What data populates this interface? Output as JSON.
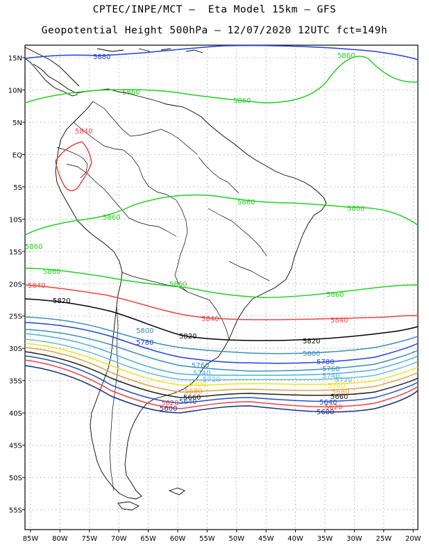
{
  "header": {
    "title_line1": "CPTEC/INPE/MCT –  Eta Model 15km – GFS",
    "title_line2": "Geopotential Height 500hPa – 12/07/2020 12UTC fct=149h"
  },
  "map": {
    "lat_labels": [
      "15N",
      "10N",
      "5N",
      "EQ",
      "5S",
      "10S",
      "15S",
      "20S",
      "25S",
      "30S",
      "35S",
      "40S",
      "45S",
      "50S",
      "55S"
    ],
    "lon_labels": [
      "85W",
      "80W",
      "75W",
      "70W",
      "65W",
      "60W",
      "55W",
      "50W",
      "45W",
      "40W",
      "35W",
      "30W",
      "25W",
      "20W"
    ],
    "grid_color": "#9a9a9a",
    "coast_color": "#000000"
  },
  "contours": {
    "c5880": {
      "label": "5880",
      "color": "#2040e0"
    },
    "c5860": {
      "label": "5860",
      "color": "#20d020"
    },
    "c5840": {
      "label": "5840",
      "color": "#f04040"
    },
    "c5820": {
      "label": "5820",
      "color": "#000000"
    },
    "c5800": {
      "label": "5800",
      "color": "#3a8ec0"
    },
    "c5780": {
      "label": "5780",
      "color": "#2040e0"
    },
    "c5760": {
      "label": "5760",
      "color": "#3a8ec0"
    },
    "c5740": {
      "label": "5740",
      "color": "#4ab0d8"
    },
    "c5720": {
      "label": "5720",
      "color": "#6ab8d8"
    },
    "c5700": {
      "label": "5700",
      "color": "#f0e020"
    },
    "c5680": {
      "label": "5680",
      "color": "#e0a040"
    },
    "c5660": {
      "label": "5660",
      "color": "#202020"
    },
    "c5640": {
      "label": "5640",
      "color": "#2050c0"
    },
    "c5620": {
      "label": "5620",
      "color": "#f04040"
    },
    "c5600": {
      "label": "5600",
      "color": "#1a2a80"
    }
  }
}
